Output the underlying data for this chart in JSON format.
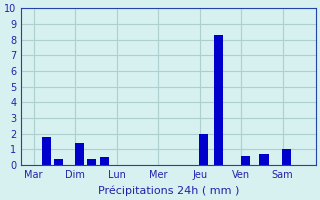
{
  "background_color": "#d7f0f0",
  "grid_color": "#aecfcf",
  "bar_color": "#0000cc",
  "xlabel": "Précipitations 24h ( mm )",
  "ylim": [
    0,
    10
  ],
  "yticks": [
    0,
    1,
    2,
    3,
    4,
    5,
    6,
    7,
    8,
    9,
    10
  ],
  "day_labels": [
    "Mar",
    "Dim",
    "Lun",
    "Mer",
    "Jeu",
    "Ven",
    "Sam"
  ],
  "day_positions": [
    0,
    1,
    2,
    3,
    4,
    5,
    6
  ],
  "bar_positions": [
    0.3,
    0.6,
    1.1,
    1.4,
    1.7,
    2.1,
    2.4,
    3.5,
    4.1,
    4.45,
    5.1,
    5.55,
    6.1
  ],
  "bar_values": [
    1.8,
    0.35,
    1.4,
    0.4,
    0.5,
    0.0,
    0.0,
    0.0,
    2.0,
    8.3,
    0.55,
    0.7,
    1.0
  ],
  "bar_width": 0.22,
  "tick_color": "#2222aa",
  "label_color": "#2222aa",
  "axis_color": "#2244aa",
  "xlabel_fontsize": 8,
  "tick_fontsize": 7,
  "xlim": [
    -0.3,
    6.8
  ]
}
